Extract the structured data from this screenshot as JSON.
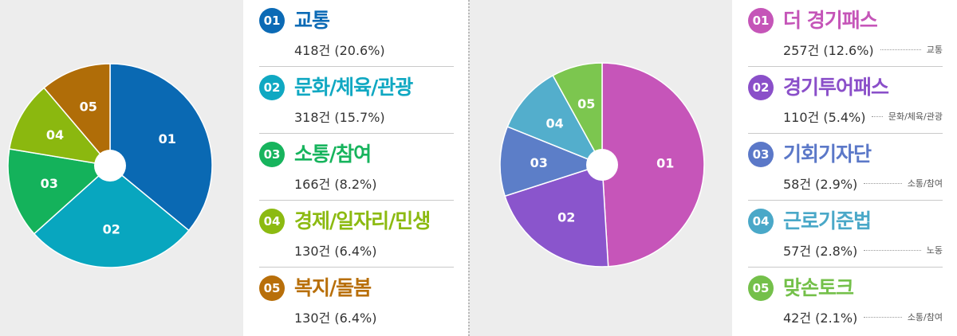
{
  "charts": [
    {
      "items": [
        {
          "num": "01",
          "name": "교통",
          "count": "418건 (20.6%)",
          "color": "#0b6ab5"
        },
        {
          "num": "02",
          "name": "문화/체육/관광",
          "count": "318건 (15.7%)",
          "color": "#10a8c2"
        },
        {
          "num": "03",
          "name": "소통/참여",
          "count": "166건 (8.2%)",
          "color": "#17b45d"
        },
        {
          "num": "04",
          "name": "경제/일자리/민생",
          "count": "130건 (6.4%)",
          "color": "#8cba11"
        },
        {
          "num": "05",
          "name": "복지/돌봄",
          "count": "130건 (6.4%)",
          "color": "#b86f0a"
        }
      ]
    },
    {
      "items": [
        {
          "num": "01",
          "name": "더 경기패스",
          "count": "257건 (12.6%)",
          "tag": "교통",
          "color": "#c555b8"
        },
        {
          "num": "02",
          "name": "경기투어패스",
          "count": "110건 (5.4%)",
          "tag": "문화/체육/관광",
          "color": "#8a4fc9"
        },
        {
          "num": "03",
          "name": "기회기자단",
          "count": "58건 (2.9%)",
          "tag": "소통/참여",
          "color": "#5b78c8"
        },
        {
          "num": "04",
          "name": "근로기준법",
          "count": "57건 (2.8%)",
          "tag": "노동",
          "color": "#4aa8c8"
        },
        {
          "num": "05",
          "name": "맞손토크",
          "count": "42건 (2.1%)",
          "tag": "소통/참여",
          "color": "#74c04a"
        }
      ]
    }
  ],
  "chart_data": [
    {
      "type": "pie",
      "categories": [
        "01",
        "02",
        "03",
        "04",
        "05"
      ],
      "labels": [
        "교통",
        "문화/체육/관광",
        "소통/참여",
        "경제/일자리/민생",
        "복지/돌봄"
      ],
      "values": [
        418,
        318,
        166,
        130,
        130
      ],
      "percent": [
        20.6,
        15.7,
        8.2,
        6.4,
        6.4
      ],
      "colors": [
        "#0a69b3",
        "#08a6bf",
        "#14b25b",
        "#8bb80f",
        "#b06d08"
      ],
      "style": "donut"
    },
    {
      "type": "pie",
      "categories": [
        "01",
        "02",
        "03",
        "04",
        "05"
      ],
      "labels": [
        "더 경기패스",
        "경기투어패스",
        "기회기자단",
        "근로기준법",
        "맞손토크"
      ],
      "values": [
        257,
        110,
        58,
        57,
        42
      ],
      "percent": [
        12.6,
        5.4,
        2.9,
        2.8,
        2.1
      ],
      "colors": [
        "#c655b9",
        "#8a55cc",
        "#5c7ec8",
        "#53aecc",
        "#7cc64f"
      ],
      "style": "donut"
    }
  ]
}
